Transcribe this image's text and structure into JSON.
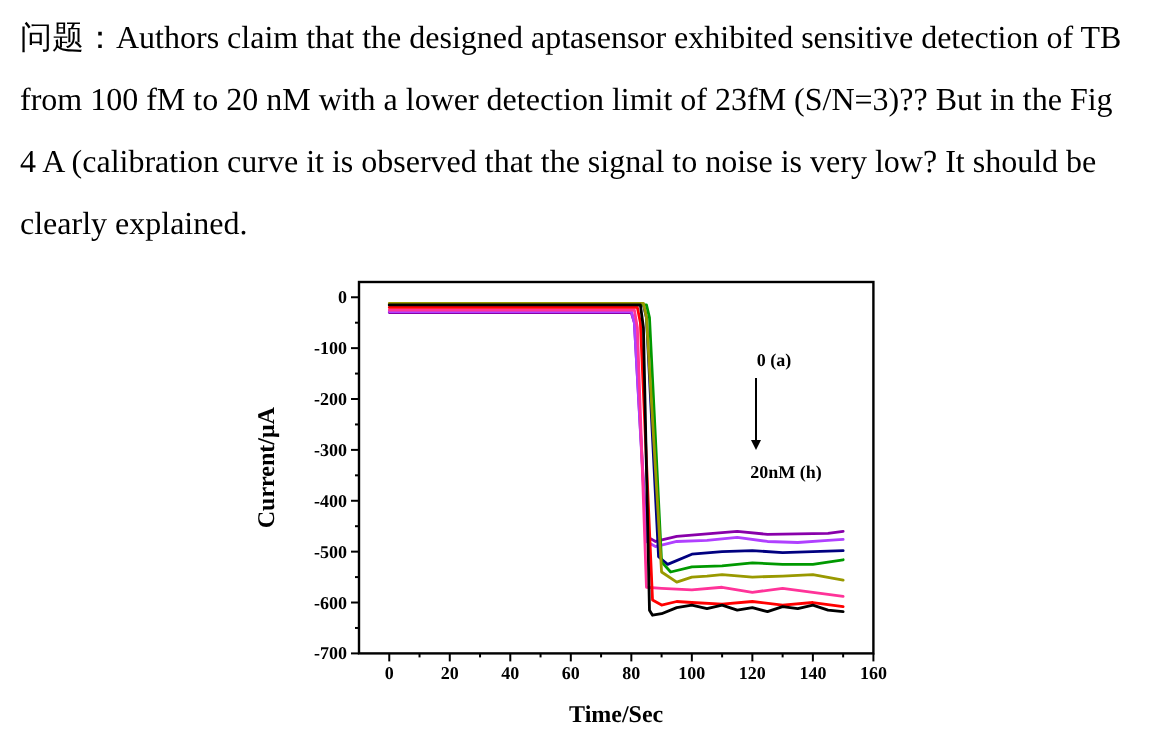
{
  "chart_data": {
    "type": "line",
    "title": "问题：Authors claim that the designed aptasensor exhibited sensitive detection of TB from 100 fM to 20 nM with a lower detection limit of 23fM (S/N=3)?? But in the Fig 4 A (calibration curve it is observed that the signal to noise is very low? It should be clearly explained.",
    "xlabel": "Time/Sec",
    "ylabel": "Current/μA",
    "annotations": [
      "0 (a)",
      "20nM (h)"
    ],
    "xlim": [
      -10,
      160
    ],
    "ylim": [
      -700,
      30
    ],
    "xticks": [
      0,
      {
        "value": 10,
        "label": null
      },
      20,
      {
        "value": 30,
        "label": null
      },
      40,
      {
        "value": 50,
        "label": null
      },
      60,
      {
        "value": 70,
        "label": null
      },
      80,
      {
        "value": 90,
        "label": null
      },
      100,
      {
        "value": 110,
        "label": null
      },
      120,
      {
        "value": 130,
        "label": null
      },
      140,
      {
        "value": 150,
        "label": null
      },
      160
    ],
    "yticks": [
      -700,
      {
        "value": -650,
        "label": null
      },
      -600,
      {
        "value": -550,
        "label": null
      },
      -500,
      {
        "value": -450,
        "label": null
      },
      -400,
      {
        "value": -350,
        "label": null
      },
      -300,
      {
        "value": -250,
        "label": null
      },
      -200,
      {
        "value": -150,
        "label": null
      },
      -100,
      {
        "value": -50,
        "label": null
      },
      0
    ],
    "grid": false,
    "marker": "none",
    "line_style": "solid",
    "series": [
      {
        "color": "#8800aa",
        "x": [
          0,
          80,
          81,
          85,
          88,
          95,
          105,
          115,
          125,
          135,
          145,
          150
        ],
        "values": [
          -30,
          -30,
          -50,
          -470,
          -480,
          -470,
          -465,
          -460,
          -466,
          -465,
          -464,
          -460
        ]
      },
      {
        "color": "#b040ff",
        "x": [
          0,
          80,
          81,
          85,
          88,
          95,
          105,
          115,
          125,
          135,
          145,
          150
        ],
        "values": [
          -28,
          -28,
          -50,
          -480,
          -490,
          -480,
          -478,
          -472,
          -480,
          -482,
          -478,
          -476
        ]
      },
      {
        "color": "#000080",
        "x": [
          0,
          84,
          85,
          89,
          92,
          100,
          110,
          120,
          130,
          140,
          150
        ],
        "values": [
          -15,
          -15,
          -40,
          -510,
          -525,
          -505,
          -500,
          -498,
          -502,
          -500,
          -498
        ]
      },
      {
        "color": "#009900",
        "x": [
          0,
          85,
          86,
          90,
          93,
          100,
          110,
          120,
          130,
          140,
          150
        ],
        "values": [
          -15,
          -15,
          -40,
          -520,
          -540,
          -530,
          -528,
          -522,
          -525,
          -525,
          -516
        ]
      },
      {
        "color": "#999900",
        "x": [
          0,
          84,
          85,
          90,
          95,
          100,
          105,
          110,
          120,
          130,
          140,
          150
        ],
        "values": [
          -12,
          -12,
          -40,
          -540,
          -560,
          -550,
          -548,
          -545,
          -550,
          -548,
          -545,
          -556
        ]
      },
      {
        "color": "#ff3399",
        "x": [
          0,
          81,
          82,
          85,
          90,
          100,
          110,
          120,
          130,
          140,
          150
        ],
        "values": [
          -25,
          -25,
          -60,
          -570,
          -572,
          -575,
          -570,
          -580,
          -572,
          -580,
          -588
        ]
      },
      {
        "color": "#ff0000",
        "x": [
          0,
          82,
          83,
          87,
          90,
          95,
          100,
          110,
          120,
          130,
          140,
          150
        ],
        "values": [
          -20,
          -20,
          -50,
          -595,
          -605,
          -598,
          -600,
          -603,
          -598,
          -605,
          -600,
          -608
        ]
      },
      {
        "color": "#000000",
        "x": [
          0,
          83,
          84,
          86,
          87,
          90,
          95,
          100,
          105,
          110,
          115,
          120,
          125,
          130,
          135,
          140,
          145,
          150
        ],
        "values": [
          -15,
          -15,
          -60,
          -615,
          -625,
          -622,
          -610,
          -605,
          -612,
          -605,
          -615,
          -610,
          -618,
          -608,
          -612,
          -605,
          -615,
          -618
        ]
      }
    ]
  }
}
